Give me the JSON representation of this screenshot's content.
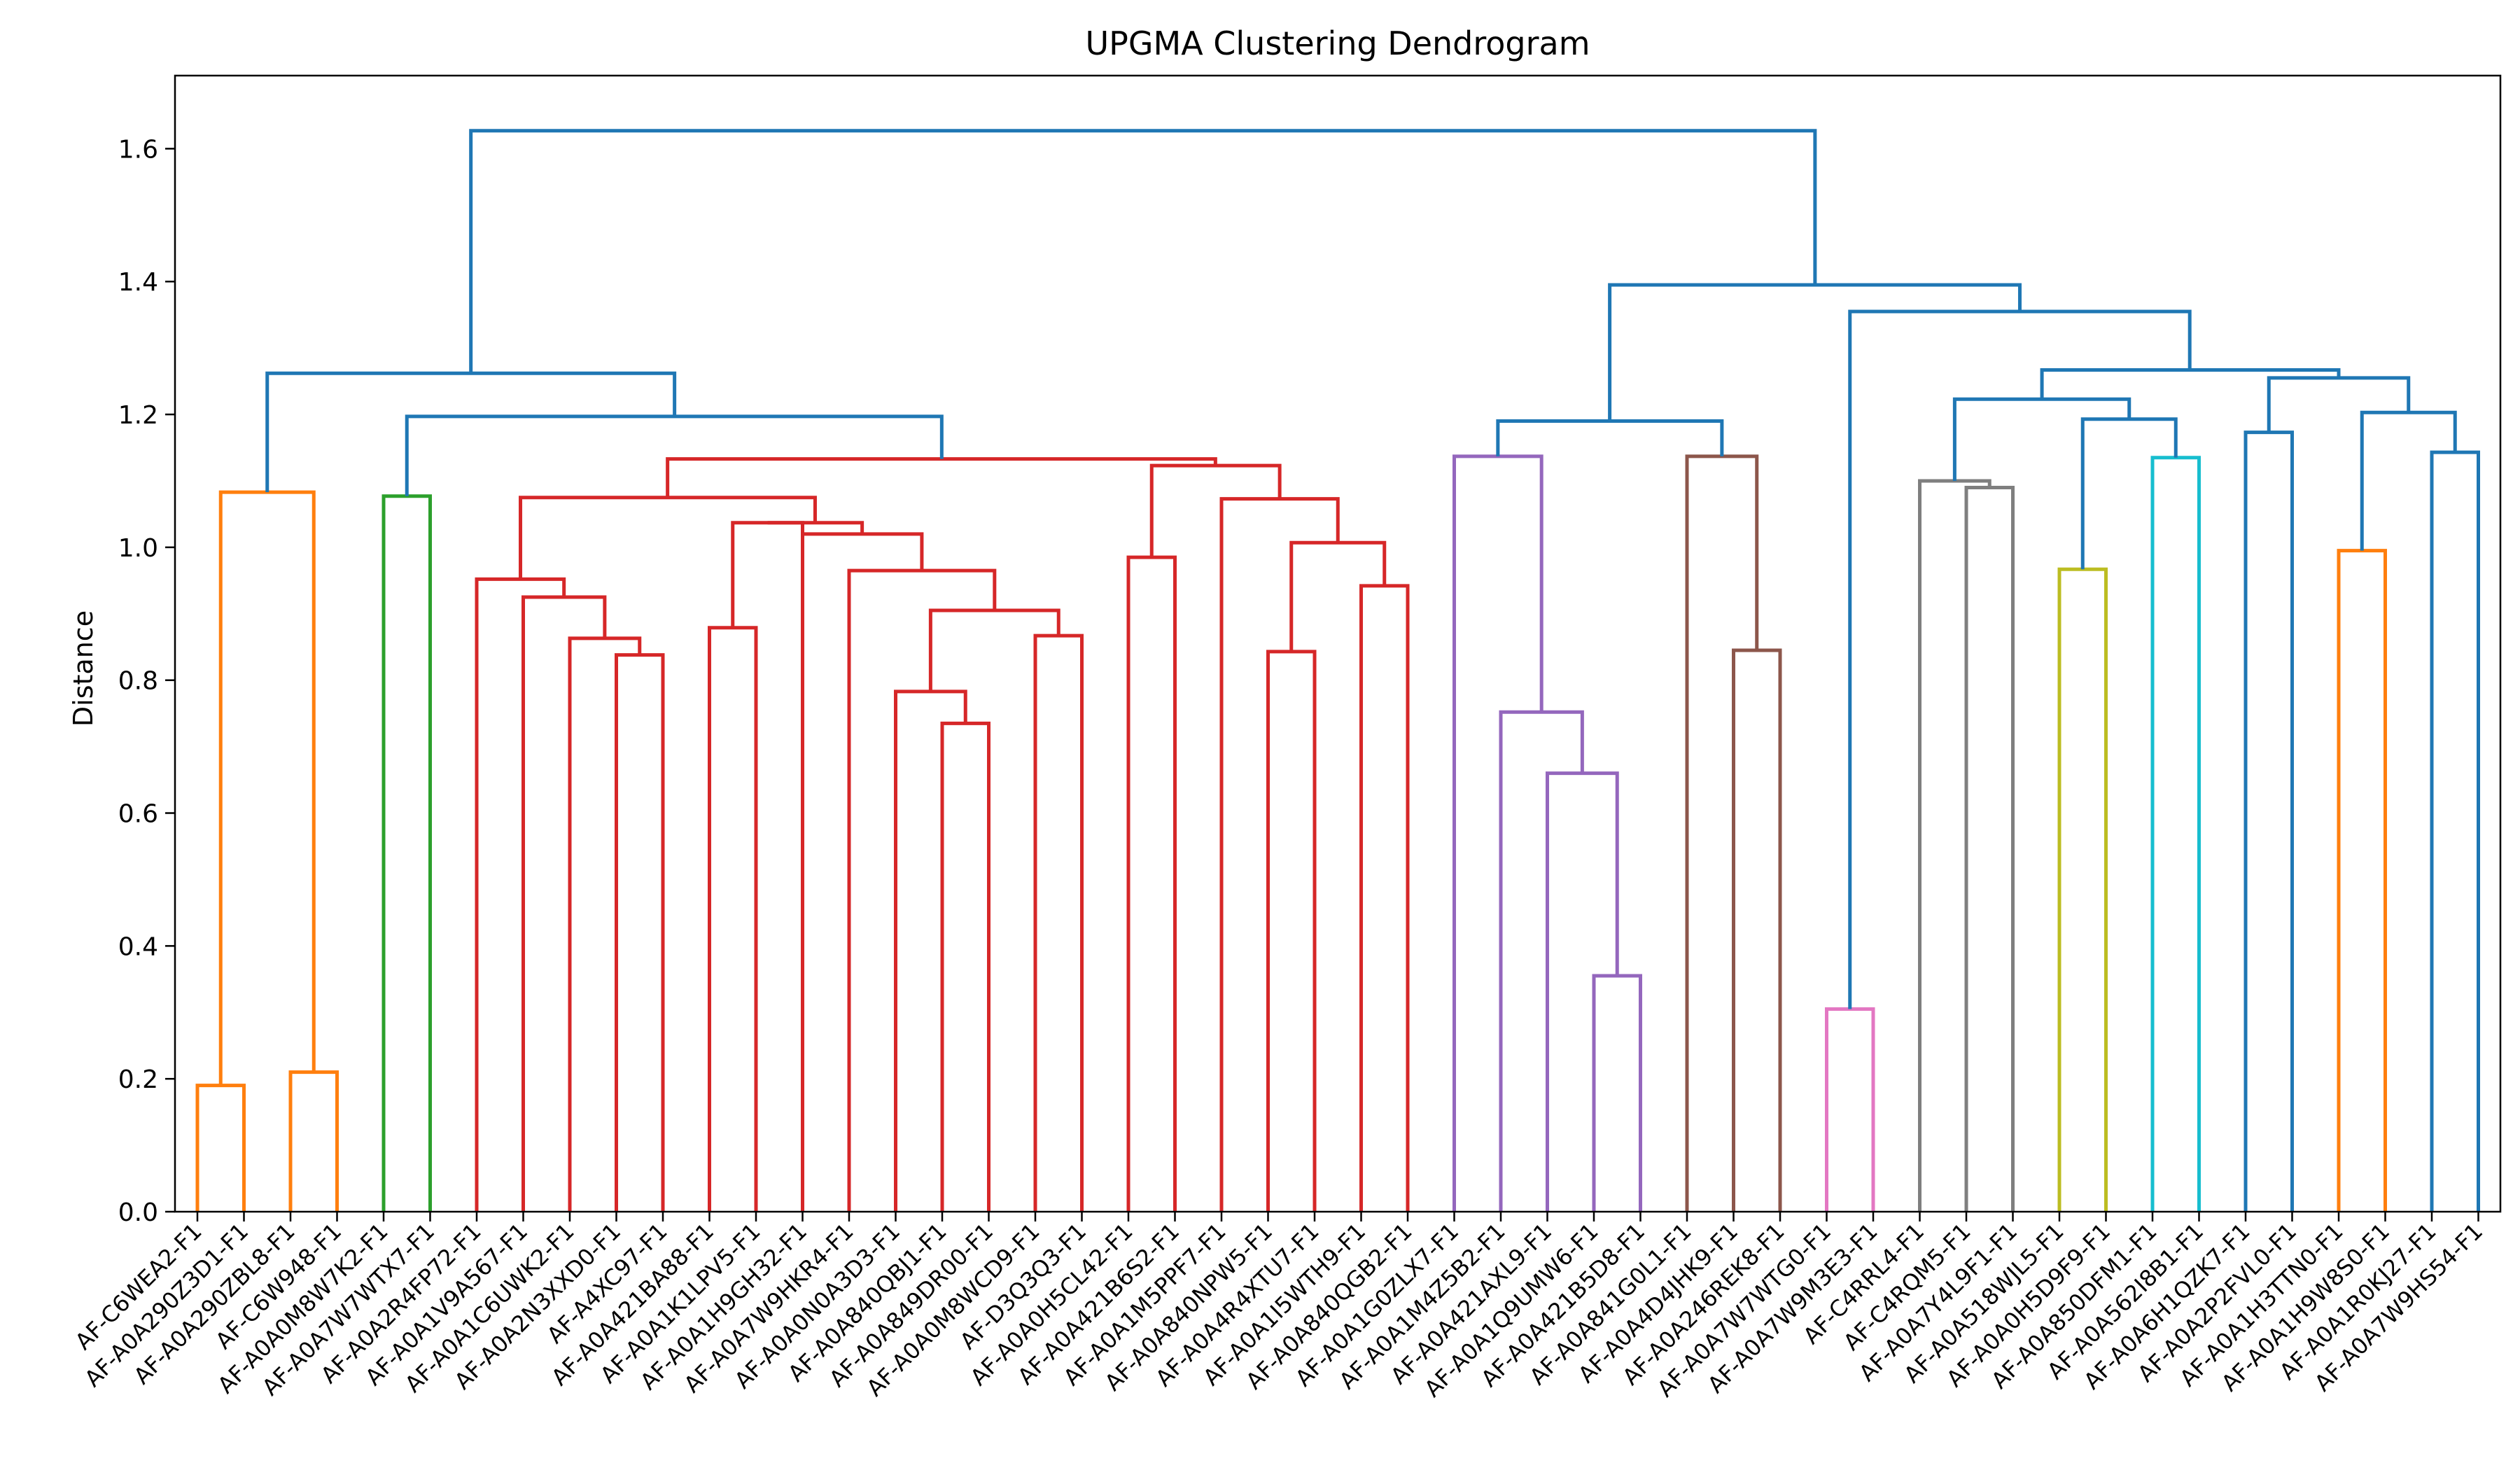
{
  "chart_data": {
    "type": "dendrogram",
    "title": "UPGMA Clustering Dendrogram",
    "xlabel": "",
    "ylabel": "Distance",
    "ylim": [
      0,
      1.71
    ],
    "yticks": [
      "0.0",
      "0.2",
      "0.4",
      "0.6",
      "0.8",
      "1.0",
      "1.2",
      "1.4",
      "1.6"
    ],
    "ytick_values": [
      0,
      0.2,
      0.4,
      0.6,
      0.8,
      1.0,
      1.2,
      1.4,
      1.6
    ],
    "leaves": [
      "AF-C6WEA2-F1",
      "AF-A0A290Z3D1-F1",
      "AF-A0A290ZBL8-F1",
      "AF-C6W948-F1",
      "AF-A0A0M8W7K2-F1",
      "AF-A0A7W7WTX7-F1",
      "AF-A0A2R4FP72-F1",
      "AF-A0A1V9A567-F1",
      "AF-A0A1C6UWK2-F1",
      "AF-A0A2N3XXD0-F1",
      "AF-A4XC97-F1",
      "AF-A0A421BA88-F1",
      "AF-A0A1K1LPV5-F1",
      "AF-A0A1H9GH32-F1",
      "AF-A0A7W9HKR4-F1",
      "AF-A0A0N0A3D3-F1",
      "AF-A0A840QBJ1-F1",
      "AF-A0A849DR00-F1",
      "AF-A0A0M8WCD9-F1",
      "AF-D3Q3Q3-F1",
      "AF-A0A0H5CL42-F1",
      "AF-A0A421B6S2-F1",
      "AF-A0A1M5PPF7-F1",
      "AF-A0A840NPW5-F1",
      "AF-A0A4R4XTU7-F1",
      "AF-A0A1I5WTH9-F1",
      "AF-A0A840QGB2-F1",
      "AF-A0A1G0ZLX7-F1",
      "AF-A0A1M4Z5B2-F1",
      "AF-A0A421AXL9-F1",
      "AF-A0A1Q9UMW6-F1",
      "AF-A0A421B5D8-F1",
      "AF-A0A841G0L1-F1",
      "AF-A0A4D4JHK9-F1",
      "AF-A0A246REK8-F1",
      "AF-A0A7W7WTG0-F1",
      "AF-A0A7W9M3E3-F1",
      "AF-C4RRL4-F1",
      "AF-C4RQM5-F1",
      "AF-A0A7Y4L9F1-F1",
      "AF-A0A518WJL5-F1",
      "AF-A0A0H5D9F9-F1",
      "AF-A0A850DFM1-F1",
      "AF-A0A562I8B1-F1",
      "AF-A0A6H1QZK7-F1",
      "AF-A0A2P2FVL0-F1",
      "AF-A0A1H3TTN0-F1",
      "AF-A0A1H9W8S0-F1",
      "AF-A0A1R0KJ27-F1",
      "AF-A0A7W9HS54-F1"
    ],
    "links": [
      {
        "xl": 0,
        "xr": 1,
        "hl": 0,
        "hr": 0,
        "h": 0.19,
        "color": "#ff7f0e"
      },
      {
        "xl": 2,
        "xr": 3,
        "hl": 0,
        "hr": 0,
        "h": 0.21,
        "color": "#ff7f0e"
      },
      {
        "xl": 0.5,
        "xr": 2.5,
        "hl": 0.19,
        "hr": 0.21,
        "h": 1.083,
        "color": "#ff7f0e"
      },
      {
        "xl": 4,
        "xr": 5,
        "hl": 0,
        "hr": 0,
        "h": 1.077,
        "color": "#2ca02c"
      },
      {
        "xl": 9,
        "xr": 10,
        "hl": 0,
        "hr": 0,
        "h": 0.838,
        "color": "#d62728"
      },
      {
        "xl": 8,
        "xr": 9.5,
        "hl": 0,
        "hr": 0.838,
        "h": 0.863,
        "color": "#d62728"
      },
      {
        "xl": 7,
        "xr": 8.75,
        "hl": 0,
        "hr": 0.863,
        "h": 0.925,
        "color": "#d62728"
      },
      {
        "xl": 6,
        "xr": 7.875,
        "hl": 0,
        "hr": 0.925,
        "h": 0.952,
        "color": "#d62728"
      },
      {
        "xl": 11,
        "xr": 12,
        "hl": 0,
        "hr": 0,
        "h": 0.879,
        "color": "#d62728"
      },
      {
        "xl": 11.5,
        "xr": 13,
        "hl": 0.879,
        "hr": 0,
        "h": 1.037,
        "color": "#d62728"
      },
      {
        "xl": 16,
        "xr": 17,
        "hl": 0,
        "hr": 0,
        "h": 0.735,
        "color": "#d62728"
      },
      {
        "xl": 15,
        "xr": 16.5,
        "hl": 0,
        "hr": 0.735,
        "h": 0.783,
        "color": "#d62728"
      },
      {
        "xl": 18,
        "xr": 19,
        "hl": 0,
        "hr": 0,
        "h": 0.867,
        "color": "#d62728"
      },
      {
        "xl": 15.75,
        "xr": 18.5,
        "hl": 0.783,
        "hr": 0.867,
        "h": 0.905,
        "color": "#d62728"
      },
      {
        "xl": 14,
        "xr": 17.125,
        "hl": 0,
        "hr": 0.905,
        "h": 0.965,
        "color": "#d62728"
      },
      {
        "xl": 13,
        "xr": 15.5625,
        "hl": 0,
        "hr": 0.965,
        "h": 1.02,
        "color": "#d62728"
      },
      {
        "xl": 12.25,
        "xr": 14.28,
        "hl": 1.037,
        "hr": 1.02,
        "h": 1.037,
        "color": "#d62728"
      },
      {
        "xl": 6.94,
        "xr": 13.27,
        "hl": 0.952,
        "hr": 1.037,
        "h": 1.075,
        "color": "#d62728"
      },
      {
        "xl": 20,
        "xr": 21,
        "hl": 0,
        "hr": 0,
        "h": 0.985,
        "color": "#d62728"
      },
      {
        "xl": 23,
        "xr": 24,
        "hl": 0,
        "hr": 0,
        "h": 0.843,
        "color": "#d62728"
      },
      {
        "xl": 25,
        "xr": 26,
        "hl": 0,
        "hr": 0,
        "h": 0.942,
        "color": "#d62728"
      },
      {
        "xl": 23.5,
        "xr": 25.5,
        "hl": 0.843,
        "hr": 0.942,
        "h": 1.007,
        "color": "#d62728"
      },
      {
        "xl": 22,
        "xr": 24.5,
        "hl": 0,
        "hr": 1.007,
        "h": 1.073,
        "color": "#d62728"
      },
      {
        "xl": 20.5,
        "xr": 23.25,
        "hl": 0.985,
        "hr": 1.073,
        "h": 1.123,
        "color": "#d62728"
      },
      {
        "xl": 10.1,
        "xr": 21.87,
        "hl": 1.075,
        "hr": 1.123,
        "h": 1.133,
        "color": "#d62728"
      },
      {
        "xl": 4.5,
        "xr": 15.99,
        "hl": 1.077,
        "hr": 1.133,
        "h": 1.197,
        "color": "#1f77b4"
      },
      {
        "xl": 1.5,
        "xr": 10.25,
        "hl": 1.083,
        "hr": 1.197,
        "h": 1.262,
        "color": "#1f77b4"
      },
      {
        "xl": 30,
        "xr": 31,
        "hl": 0,
        "hr": 0,
        "h": 0.355,
        "color": "#9467bd"
      },
      {
        "xl": 29,
        "xr": 30.5,
        "hl": 0,
        "hr": 0.355,
        "h": 0.66,
        "color": "#9467bd"
      },
      {
        "xl": 28,
        "xr": 29.75,
        "hl": 0,
        "hr": 0.66,
        "h": 0.752,
        "color": "#9467bd"
      },
      {
        "xl": 27,
        "xr": 28.875,
        "hl": 0,
        "hr": 0.752,
        "h": 1.137,
        "color": "#9467bd"
      },
      {
        "xl": 33,
        "xr": 34,
        "hl": 0,
        "hr": 0,
        "h": 0.845,
        "color": "#8c564b"
      },
      {
        "xl": 32,
        "xr": 33.5,
        "hl": 0,
        "hr": 0.845,
        "h": 1.137,
        "color": "#8c564b"
      },
      {
        "xl": 27.9375,
        "xr": 32.75,
        "hl": 1.137,
        "hr": 1.137,
        "h": 1.19,
        "color": "#1f77b4"
      },
      {
        "xl": 35,
        "xr": 36,
        "hl": 0,
        "hr": 0,
        "h": 0.305,
        "color": "#e377c2"
      },
      {
        "xl": 38,
        "xr": 39,
        "hl": 0,
        "hr": 0,
        "h": 1.09,
        "color": "#7f7f7f"
      },
      {
        "xl": 37,
        "xr": 38.5,
        "hl": 0,
        "hr": 1.09,
        "h": 1.1,
        "color": "#7f7f7f"
      },
      {
        "xl": 40,
        "xr": 41,
        "hl": 0,
        "hr": 0,
        "h": 0.967,
        "color": "#bcbd22"
      },
      {
        "xl": 42,
        "xr": 43,
        "hl": 0,
        "hr": 0,
        "h": 1.135,
        "color": "#17becf"
      },
      {
        "xl": 40.5,
        "xr": 42.5,
        "hl": 0.967,
        "hr": 1.135,
        "h": 1.193,
        "color": "#1f77b4"
      },
      {
        "xl": 37.75,
        "xr": 41.5,
        "hl": 1.1,
        "hr": 1.193,
        "h": 1.223,
        "color": "#1f77b4"
      },
      {
        "xl": 44,
        "xr": 45,
        "hl": 0,
        "hr": 0,
        "h": 1.173,
        "color": "#1f77b4"
      },
      {
        "xl": 46,
        "xr": 47,
        "hl": 0,
        "hr": 0,
        "h": 0.995,
        "color": "#ff7f0e"
      },
      {
        "xl": 48,
        "xr": 49,
        "hl": 0,
        "hr": 0,
        "h": 1.143,
        "color": "#1f77b4"
      },
      {
        "xl": 46.5,
        "xr": 48.5,
        "hl": 0.995,
        "hr": 1.143,
        "h": 1.203,
        "color": "#1f77b4"
      },
      {
        "xl": 44.5,
        "xr": 47.5,
        "hl": 1.173,
        "hr": 1.203,
        "h": 1.255,
        "color": "#1f77b4"
      },
      {
        "xl": 39.625,
        "xr": 46,
        "hl": 1.223,
        "hr": 1.255,
        "h": 1.267,
        "color": "#1f77b4"
      },
      {
        "xl": 35.5,
        "xr": 42.8,
        "hl": 0.305,
        "hr": 1.267,
        "h": 1.355,
        "color": "#1f77b4"
      },
      {
        "xl": 30.34,
        "xr": 39.15,
        "hl": 1.19,
        "hr": 1.355,
        "h": 1.395,
        "color": "#1f77b4"
      },
      {
        "xl": 5.875,
        "xr": 34.75,
        "hl": 1.262,
        "hr": 1.395,
        "h": 1.627,
        "color": "#1f77b4"
      }
    ]
  }
}
